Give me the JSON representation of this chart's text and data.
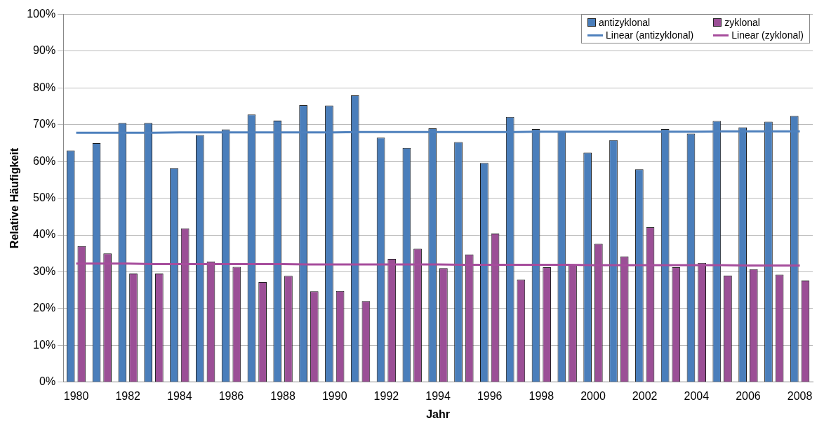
{
  "chart_data": {
    "type": "bar",
    "xlabel": "Jahr",
    "ylabel": "Relative Häufigkeit",
    "categories": [
      "1980",
      null,
      "1982",
      null,
      "1984",
      null,
      "1986",
      null,
      "1988",
      null,
      "1990",
      null,
      "1992",
      null,
      "1994",
      null,
      "1996",
      null,
      "1998",
      null,
      "2000",
      null,
      "2002",
      null,
      "2004",
      null,
      "2006",
      null,
      "2008"
    ],
    "series": [
      {
        "name": "antizyklonal",
        "color": "#4a7ebb",
        "values": [
          63,
          65,
          70.5,
          70.5,
          58.2,
          67.2,
          68.7,
          72.8,
          71.1,
          75.3,
          75.2,
          78,
          66.5,
          63.7,
          69,
          65.3,
          59.6,
          72.1,
          68.8,
          68.1,
          62.4,
          65.8,
          57.9,
          68.8,
          67.6,
          71,
          69.3,
          70.8,
          72.4
        ]
      },
      {
        "name": "zyklonal",
        "color": "#9b4f96",
        "values": [
          37,
          35,
          29.5,
          29.5,
          41.8,
          32.8,
          31.3,
          27.2,
          28.9,
          24.7,
          24.8,
          22,
          33.5,
          36.3,
          31,
          34.7,
          40.4,
          27.9,
          31.2,
          31.9,
          37.6,
          34.2,
          42.1,
          31.2,
          32.4,
          29,
          30.7,
          29.2,
          27.6
        ]
      },
      {
        "name": "Linear (antizyklonal)",
        "type": "line",
        "color": "#4f81bd",
        "values": [
          67.8,
          67.8,
          67.8,
          67.8,
          67.9,
          67.9,
          67.9,
          67.9,
          67.9,
          67.9,
          67.9,
          68,
          68,
          68,
          68,
          68,
          68,
          68,
          68.1,
          68.1,
          68.1,
          68.1,
          68.1,
          68.1,
          68.1,
          68.2,
          68.2,
          68.2,
          68.2
        ]
      },
      {
        "name": "Linear (zyklonal)",
        "type": "line",
        "color": "#a64d9c",
        "values": [
          32.2,
          32.2,
          32.2,
          32.1,
          32.1,
          32.1,
          32.1,
          32.1,
          32.1,
          32,
          32,
          32,
          32,
          32,
          32,
          31.9,
          31.9,
          31.9,
          31.9,
          31.9,
          31.8,
          31.8,
          31.8,
          31.8,
          31.8,
          31.8,
          31.7,
          31.7,
          31.7
        ]
      }
    ],
    "ylim": [
      0,
      100
    ],
    "yticks": [
      {
        "value": 0,
        "label": "0%"
      },
      {
        "value": 10,
        "label": "10%"
      },
      {
        "value": 20,
        "label": "20%"
      },
      {
        "value": 30,
        "label": "30%"
      },
      {
        "value": 40,
        "label": "40%"
      },
      {
        "value": 50,
        "label": "50%"
      },
      {
        "value": 60,
        "label": "60%"
      },
      {
        "value": 70,
        "label": "70%"
      },
      {
        "value": 80,
        "label": "80%"
      },
      {
        "value": 90,
        "label": "90%"
      },
      {
        "value": 100,
        "label": "100%"
      }
    ],
    "grid": "y",
    "legend": "top right",
    "marker": "none"
  }
}
